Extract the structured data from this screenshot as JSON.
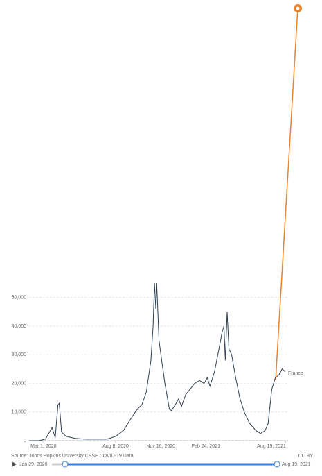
{
  "chart_data": {
    "type": "line",
    "x": [
      "2020-01-29",
      "2020-02-20",
      "2020-03-05",
      "2020-03-20",
      "2020-03-27",
      "2020-04-02",
      "2020-04-05",
      "2020-04-10",
      "2020-04-20",
      "2020-05-10",
      "2020-06-01",
      "2020-07-01",
      "2020-07-20",
      "2020-08-08",
      "2020-08-25",
      "2020-09-10",
      "2020-09-25",
      "2020-10-05",
      "2020-10-15",
      "2020-10-25",
      "2020-10-30",
      "2020-11-02",
      "2020-11-05",
      "2020-11-07",
      "2020-11-12",
      "2020-11-18",
      "2020-11-25",
      "2020-12-05",
      "2020-12-10",
      "2020-12-20",
      "2020-12-25",
      "2021-01-01",
      "2021-01-10",
      "2021-01-20",
      "2021-01-30",
      "2021-02-10",
      "2021-02-20",
      "2021-02-27",
      "2021-03-05",
      "2021-03-15",
      "2021-03-25",
      "2021-04-01",
      "2021-04-05",
      "2021-04-08",
      "2021-04-12",
      "2021-04-16",
      "2021-04-22",
      "2021-05-01",
      "2021-05-10",
      "2021-05-20",
      "2021-06-01",
      "2021-06-15",
      "2021-06-25",
      "2021-07-05",
      "2021-07-12",
      "2021-07-20",
      "2021-07-28",
      "2021-08-05",
      "2021-08-12",
      "2021-08-19"
    ],
    "series": [
      {
        "name": "France",
        "color": "#2d3e50",
        "values": [
          0,
          0,
          500,
          4500,
          1000,
          12500,
          13000,
          3000,
          1500,
          800,
          500,
          500,
          500,
          1500,
          3500,
          7500,
          11000,
          12500,
          17000,
          28000,
          40000,
          55000,
          46000,
          55000,
          35000,
          28000,
          20000,
          11000,
          10500,
          13000,
          14500,
          12000,
          16000,
          18000,
          20000,
          21000,
          20000,
          22000,
          19000,
          24000,
          32000,
          38000,
          40000,
          28000,
          45000,
          32000,
          30000,
          22000,
          15000,
          10000,
          6000,
          3500,
          2500,
          3500,
          6000,
          18000,
          22000,
          23000,
          25000,
          24000
        ]
      }
    ],
    "xlim": [
      "2020-01-29",
      "2021-08-19"
    ],
    "xticks": [
      {
        "value": "2020-03-01",
        "label": "Mar 1, 2020"
      },
      {
        "value": "2020-08-08",
        "label": "Aug 8, 2020"
      },
      {
        "value": "2020-11-16",
        "label": "Nov 16, 2020"
      },
      {
        "value": "2021-02-24",
        "label": "Feb 24, 2021"
      },
      {
        "value": "2021-08-19",
        "label": "Aug 19, 2021"
      }
    ],
    "ylim": [
      0,
      55000
    ],
    "yticks": [
      0,
      {
        "value": 10000,
        "label": "10,000"
      },
      {
        "value": 20000,
        "label": "20,000"
      },
      {
        "value": 30000,
        "label": "30,000"
      },
      {
        "value": 40000,
        "label": "40,000"
      },
      {
        "value": 50000,
        "label": "50,000"
      }
    ],
    "grid": true
  },
  "footer": {
    "source": "Source: Johns Hopkins University CSSE COVID-19 Data",
    "license": "CC BY"
  },
  "timeline": {
    "start": "Jan 29, 2020",
    "end": "Aug 19, 2021"
  }
}
